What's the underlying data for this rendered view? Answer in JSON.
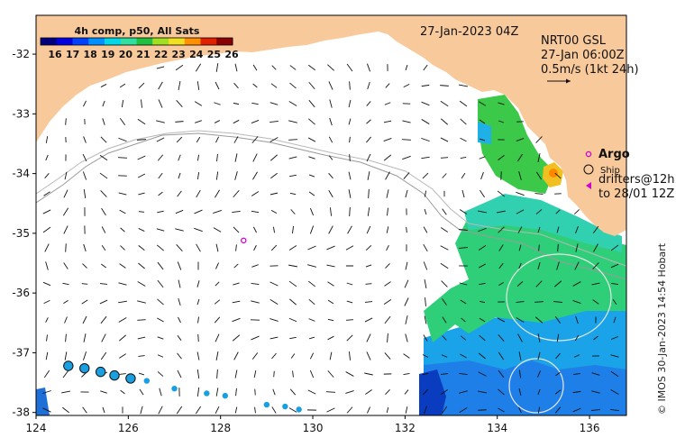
{
  "map": {
    "date_label": "27-Jan-2023 04Z",
    "product": {
      "line1": "NRT00 GSL",
      "line2": "27-Jan 06:00Z",
      "line3": "0.5m/s (1kt 24h)"
    },
    "colorbar": {
      "title": "4h comp, p50, All Sats",
      "min": 16,
      "max": 26,
      "labels": [
        "16",
        "17",
        "18",
        "19",
        "20",
        "21",
        "22",
        "23",
        "24",
        "25",
        "26"
      ],
      "colors": [
        "#00007f",
        "#0000e0",
        "#0040ff",
        "#0090ff",
        "#00d8e8",
        "#30e0a0",
        "#20c040",
        "#a0e020",
        "#f0e020",
        "#ff9000",
        "#e02000",
        "#8b0000"
      ]
    },
    "x_axis": {
      "min": 124,
      "max": 136.8,
      "ticks": [
        "124",
        "126",
        "128",
        "130",
        "132",
        "134",
        "136"
      ]
    },
    "y_axis": {
      "min": -38.05,
      "max": -31.35,
      "ticks": [
        "-32",
        "-33",
        "-34",
        "-35",
        "-36",
        "-37",
        "-38"
      ]
    },
    "legend": {
      "argo_label": "Argo",
      "ship_label": "Ship",
      "drifters_line1": "drifters@12h",
      "drifters_line2": "to 28/01 12Z",
      "argo_color": "#d000d0"
    },
    "credit": "© IMOS 30-Jan-2023 14:54 Hobart",
    "land_color": "#f8c99b",
    "argo_floats": [
      {
        "lon": 128.5,
        "lat": -35.12
      }
    ],
    "drifter_track": [
      {
        "lon": 124.7,
        "lat": -37.22,
        "size": "large"
      },
      {
        "lon": 125.05,
        "lat": -37.26,
        "size": "large"
      },
      {
        "lon": 125.4,
        "lat": -37.32,
        "size": "large"
      },
      {
        "lon": 125.7,
        "lat": -37.38,
        "size": "large"
      },
      {
        "lon": 126.05,
        "lat": -37.43,
        "size": "large"
      },
      {
        "lon": 126.4,
        "lat": -37.47,
        "size": "small"
      },
      {
        "lon": 127.0,
        "lat": -37.6,
        "size": "small"
      },
      {
        "lon": 127.7,
        "lat": -37.68,
        "size": "small"
      },
      {
        "lon": 128.1,
        "lat": -37.72,
        "size": "small"
      },
      {
        "lon": 129.0,
        "lat": -37.87,
        "size": "small"
      },
      {
        "lon": 129.4,
        "lat": -37.9,
        "size": "small"
      },
      {
        "lon": 129.7,
        "lat": -37.95,
        "size": "small"
      }
    ]
  }
}
